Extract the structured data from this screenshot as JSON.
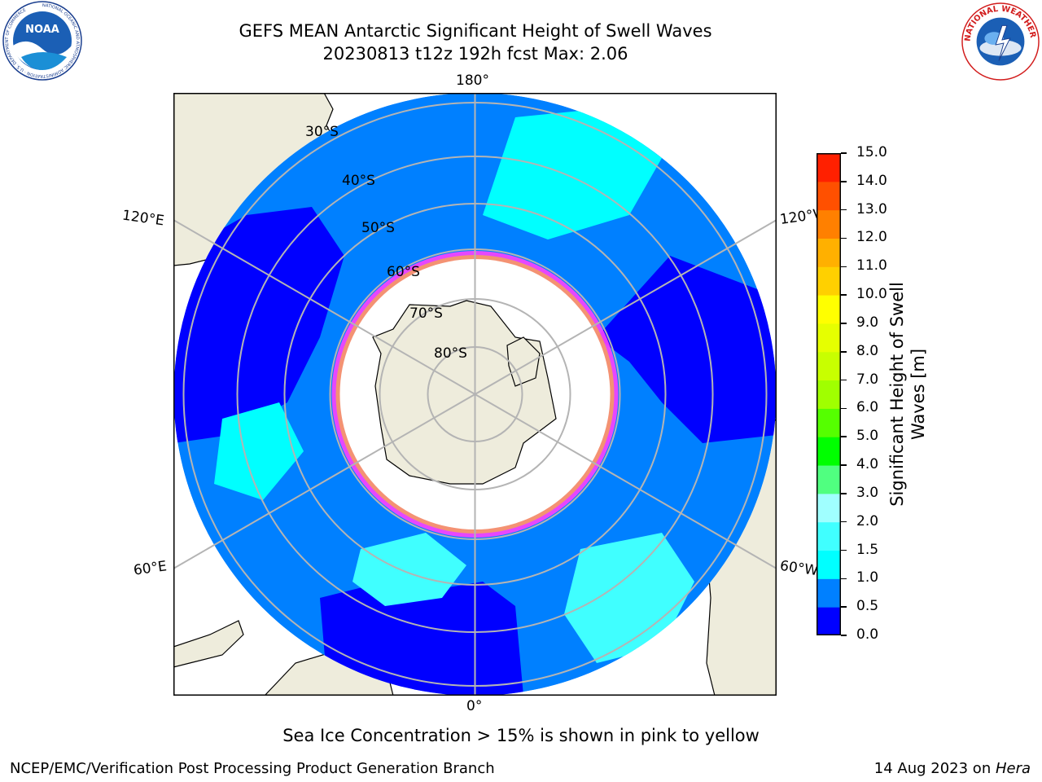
{
  "header": {
    "title_line1": "GEFS MEAN Antarctic Significant Height of Swell Waves",
    "title_line2": "20230813 t12z 192h fcst   Max: 2.06"
  },
  "logos": {
    "left": {
      "name": "noaa-logo",
      "text": "NOAA",
      "ring_text": "NATIONAL OCEANIC AND ATMOSPHERIC ADMINISTRATION · U.S. DEPARTMENT OF COMMERCE"
    },
    "right": {
      "name": "nws-logo",
      "ring_text": "NATIONAL WEATHER SERVICE"
    }
  },
  "map": {
    "projection": "south-polar-stereographic",
    "longitude_labels": [
      "180°",
      "120°E",
      "120°W",
      "60°E",
      "60°W",
      "0°"
    ],
    "latitude_labels": [
      "30°S",
      "40°S",
      "50°S",
      "60°S",
      "70°S",
      "80°S"
    ],
    "latitude_circles_deg": [
      80,
      70,
      60,
      50,
      40,
      30
    ],
    "meridians_deg": [
      0,
      60,
      120,
      180,
      240,
      300
    ],
    "colors": {
      "land": "#eeecdc",
      "ocean_low": "#0000ff",
      "ocean_mid": "#0080ff",
      "ocean_high": "#00ffff",
      "ocean_higher": "#40ffff",
      "sea_ice": "#ffffff",
      "ice_edge_pink": "#ff40ff",
      "ice_edge_yellow": "#ffd000",
      "grid": "#b4b4b4"
    }
  },
  "colorbar": {
    "label": "Significant Height of Swell Waves [m]",
    "label_lines": [
      "Significant Height of Swell",
      "Waves [m]"
    ],
    "ticks": [
      "0.0",
      "0.5",
      "1.0",
      "1.5",
      "2.0",
      "3.0",
      "4.0",
      "5.0",
      "6.0",
      "7.0",
      "8.0",
      "9.0",
      "10.0",
      "11.0",
      "12.0",
      "13.0",
      "14.0",
      "15.0"
    ],
    "colors": [
      "#0000ff",
      "#0080ff",
      "#00ffff",
      "#40ffff",
      "#a0ffff",
      "#50ff80",
      "#00ff00",
      "#55ff00",
      "#a0ff00",
      "#c8ff00",
      "#e6ff00",
      "#ffff00",
      "#ffd000",
      "#ffb000",
      "#ff8000",
      "#ff5000",
      "#ff2000"
    ]
  },
  "footer": {
    "note": "Sea Ice Concentration > 15% is shown in pink to yellow",
    "left": "NCEP/EMC/Verification Post Processing Product Generation Branch",
    "right_prefix": "14 Aug 2023 on ",
    "right_machine": "Hera"
  }
}
